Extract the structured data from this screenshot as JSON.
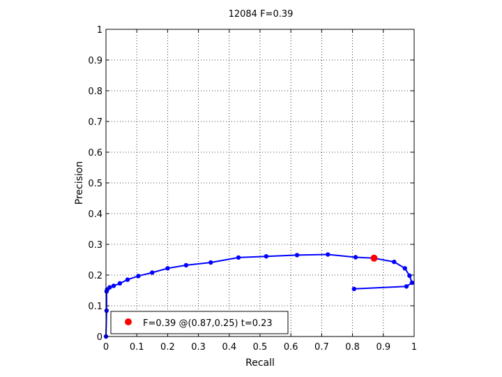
{
  "chart_data": {
    "type": "line",
    "title": "12084 F=0.39",
    "xlabel": "Recall",
    "ylabel": "Precision",
    "xlim": [
      0,
      1
    ],
    "ylim": [
      0,
      1
    ],
    "xticks": [
      "0",
      "0.1",
      "0.2",
      "0.3",
      "0.4",
      "0.5",
      "0.6",
      "0.7",
      "0.8",
      "0.9",
      "1"
    ],
    "yticks": [
      "0",
      "0.1",
      "0.2",
      "0.3",
      "0.4",
      "0.5",
      "0.6",
      "0.7",
      "0.8",
      "0.9",
      "1"
    ],
    "grid": true,
    "legend_position": "bottom-left",
    "series": [
      {
        "color": "#0000ff",
        "x": [
          0.805,
          0.975,
          0.993,
          0.985,
          0.97,
          0.935,
          0.87,
          0.81,
          0.72,
          0.62,
          0.52,
          0.43,
          0.34,
          0.26,
          0.2,
          0.15,
          0.105,
          0.07,
          0.045,
          0.025,
          0.012,
          0.004,
          0.002,
          0.002,
          0.0
        ],
        "y": [
          0.155,
          0.163,
          0.175,
          0.198,
          0.222,
          0.243,
          0.255,
          0.258,
          0.267,
          0.265,
          0.261,
          0.257,
          0.241,
          0.232,
          0.222,
          0.208,
          0.197,
          0.185,
          0.173,
          0.165,
          0.16,
          0.153,
          0.147,
          0.084,
          0.0
        ]
      }
    ],
    "best_point": {
      "x": 0.87,
      "y": 0.255,
      "color": "#ff0000"
    },
    "legend_label": "F=0.39 @(0.87,0.25) t=0.23"
  }
}
